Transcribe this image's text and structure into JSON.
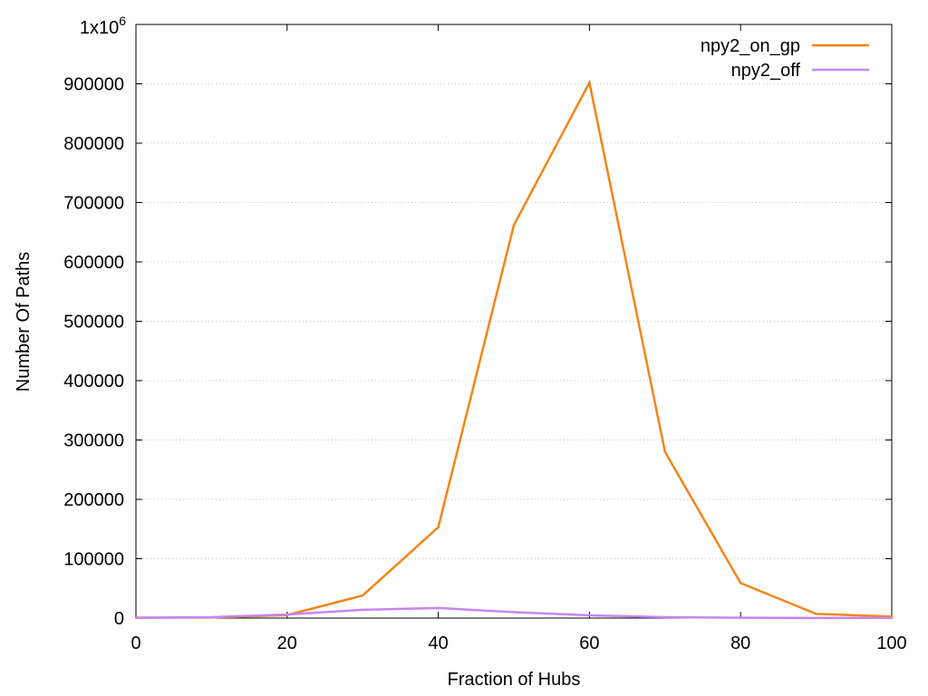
{
  "chart_data": {
    "type": "line",
    "title": "",
    "xlabel": "Fraction of Hubs",
    "ylabel": "Number Of Paths",
    "xlim": [
      0,
      100
    ],
    "ylim": [
      0,
      1000000
    ],
    "x_ticks": [
      0,
      20,
      40,
      60,
      80,
      100
    ],
    "y_ticks": [
      0,
      100000,
      200000,
      300000,
      400000,
      500000,
      600000,
      700000,
      800000,
      900000
    ],
    "y_top_label": {
      "base": "1x10",
      "exponent": "6"
    },
    "grid": "horizontal dotted",
    "legend_position": "top-right",
    "x": [
      0,
      10,
      20,
      30,
      40,
      50,
      60,
      70,
      80,
      90,
      100
    ],
    "series": [
      {
        "name": "npy2_on_gp",
        "color": "#f28518",
        "values": [
          500,
          1000,
          5000,
          38000,
          153000,
          662000,
          902000,
          280000,
          59000,
          7000,
          2500
        ]
      },
      {
        "name": "npy2_off",
        "color": "#c685f0",
        "values": [
          500,
          1500,
          6000,
          14000,
          17000,
          10000,
          4500,
          1500,
          500,
          200,
          100
        ]
      }
    ]
  }
}
